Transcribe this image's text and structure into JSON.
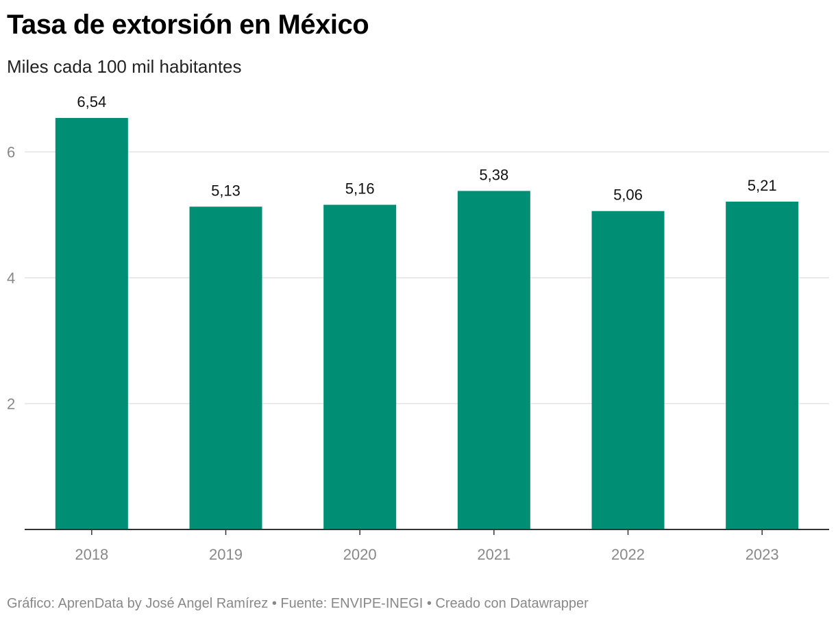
{
  "chart_data": {
    "type": "bar",
    "title": "Tasa de extorsión en México",
    "subtitle": "Miles cada 100 mil habitantes",
    "categories": [
      "2018",
      "2019",
      "2020",
      "2021",
      "2022",
      "2023"
    ],
    "values": [
      6.54,
      5.13,
      5.16,
      5.38,
      5.06,
      5.21
    ],
    "value_labels": [
      "6,54",
      "5,13",
      "5,16",
      "5,38",
      "5,06",
      "5,21"
    ],
    "y_ticks": [
      2,
      4,
      6
    ],
    "ylim": [
      0,
      6.54
    ],
    "grid": true,
    "bar_color": "#008f74",
    "footer": "Gráfico: AprenData by José Angel Ramírez • Fuente: ENVIPE-INEGI • Creado con Datawrapper"
  }
}
